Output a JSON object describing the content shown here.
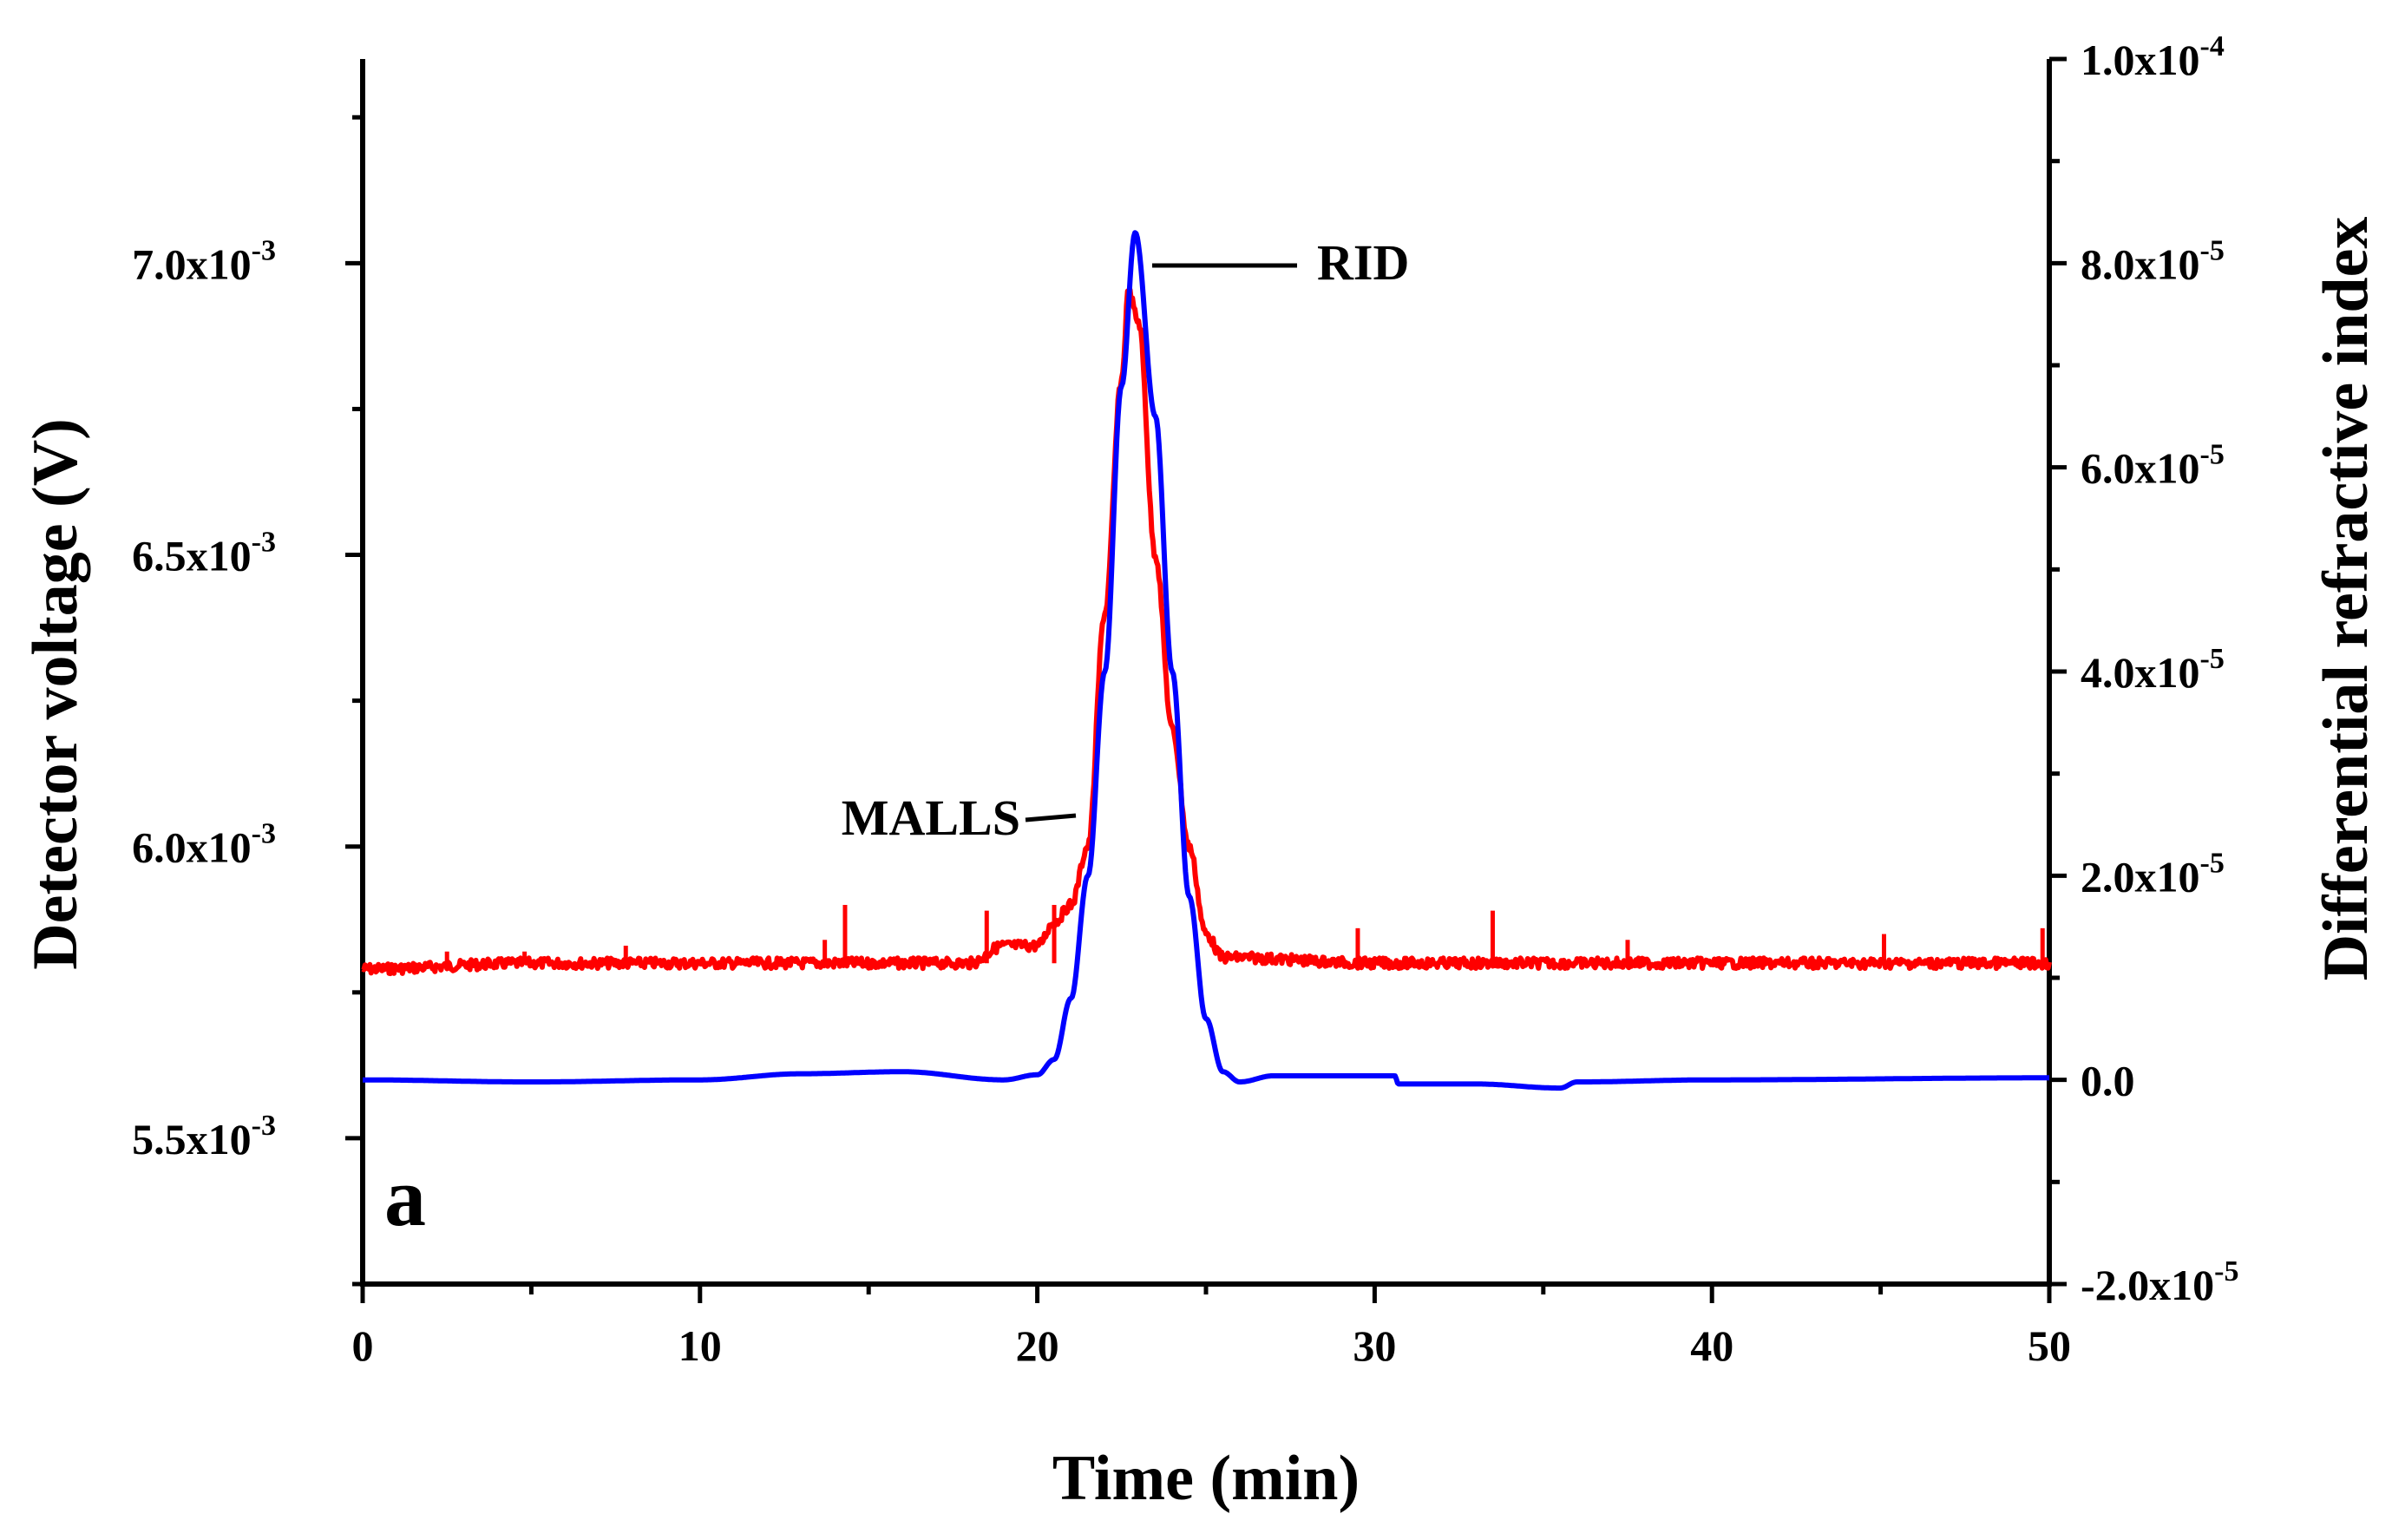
{
  "chart_data": {
    "type": "line",
    "panel_label": "a",
    "xlabel": "Time (min)",
    "ylabel_left": "Detector voltage (V)",
    "ylabel_right": "Differential refractive index",
    "xlim": [
      0,
      50
    ],
    "ylim_left": [
      0.00525,
      0.00735
    ],
    "ylim_right": [
      -2e-05,
      0.0001
    ],
    "x_ticks": [
      "0",
      "10",
      "20",
      "30",
      "40",
      "50"
    ],
    "y_left_ticks": [
      {
        "value": 0.0055,
        "mantissa": "5.5x10",
        "exp": "-3"
      },
      {
        "value": 0.006,
        "mantissa": "6.0x10",
        "exp": "-3"
      },
      {
        "value": 0.0065,
        "mantissa": "6.5x10",
        "exp": "-3"
      },
      {
        "value": 0.007,
        "mantissa": "7.0x10",
        "exp": "-3"
      }
    ],
    "y_right_ticks": [
      {
        "value": -2e-05,
        "mantissa": "-2.0x10",
        "exp": "-5"
      },
      {
        "value": 0.0,
        "mantissa": "0.0",
        "exp": ""
      },
      {
        "value": 2e-05,
        "mantissa": "2.0x10",
        "exp": "-5"
      },
      {
        "value": 4e-05,
        "mantissa": "4.0x10",
        "exp": "-5"
      },
      {
        "value": 6e-05,
        "mantissa": "6.0x10",
        "exp": "-5"
      },
      {
        "value": 8e-05,
        "mantissa": "8.0x10",
        "exp": "-5"
      },
      {
        "value": 0.0001,
        "mantissa": "1.0x10",
        "exp": "-4"
      }
    ],
    "series": [
      {
        "name": "MALLS",
        "axis": "left",
        "color": "#ff0000",
        "baseline": 0.0058,
        "peak_time": 22.7,
        "peak_value": 0.00695,
        "x": [
          0,
          5,
          10,
          15,
          18,
          19,
          20,
          20.5,
          21,
          21.5,
          22,
          22.5,
          22.7,
          23,
          23.5,
          24,
          24.5,
          25,
          25.5,
          30,
          40,
          50
        ],
        "y": [
          0.00579,
          0.0058,
          0.0058,
          0.0058,
          0.0058,
          0.00583,
          0.00583,
          0.00587,
          0.0059,
          0.006,
          0.0064,
          0.0068,
          0.00695,
          0.0069,
          0.0065,
          0.0062,
          0.006,
          0.00585,
          0.00581,
          0.0058,
          0.0058,
          0.0058
        ],
        "spikes": [
          {
            "x": 2.5,
            "y": 0.00582
          },
          {
            "x": 4.8,
            "y": 0.00582
          },
          {
            "x": 7.8,
            "y": 0.00583
          },
          {
            "x": 13.7,
            "y": 0.00584
          },
          {
            "x": 14.3,
            "y": 0.0059
          },
          {
            "x": 18.5,
            "y": 0.00589
          },
          {
            "x": 20.5,
            "y": 0.0059
          },
          {
            "x": 29.5,
            "y": 0.00586
          },
          {
            "x": 33.5,
            "y": 0.00589
          },
          {
            "x": 37.5,
            "y": 0.00584
          },
          {
            "x": 45.1,
            "y": 0.00585
          },
          {
            "x": 49.8,
            "y": 0.00586
          }
        ]
      },
      {
        "name": "RID",
        "axis": "right",
        "color": "#0000ff",
        "baseline": 0.0,
        "peak_time": 22.9,
        "peak_value": 8.3e-05,
        "x": [
          0,
          5,
          10,
          13,
          16,
          19,
          20,
          20.5,
          21,
          21.5,
          22,
          22.5,
          22.9,
          23.5,
          24,
          24.5,
          25,
          25.5,
          26,
          27,
          30,
          30.6,
          30.7,
          33,
          35.5,
          36,
          40,
          50
        ],
        "y": [
          0.0,
          -2e-07,
          0.0,
          6e-07,
          8e-07,
          0.0,
          5e-07,
          2e-06,
          8e-06,
          2e-05,
          4e-05,
          6.8e-05,
          8.3e-05,
          6.5e-05,
          4e-05,
          1.8e-05,
          6e-06,
          8e-07,
          -2e-07,
          4e-07,
          4e-07,
          4e-07,
          -4e-07,
          -4e-07,
          -8e-07,
          -2e-07,
          0.0,
          2e-07
        ]
      }
    ],
    "annotations": [
      {
        "text": "RID",
        "series": "RID"
      },
      {
        "text": "MALLS",
        "series": "MALLS"
      }
    ]
  }
}
